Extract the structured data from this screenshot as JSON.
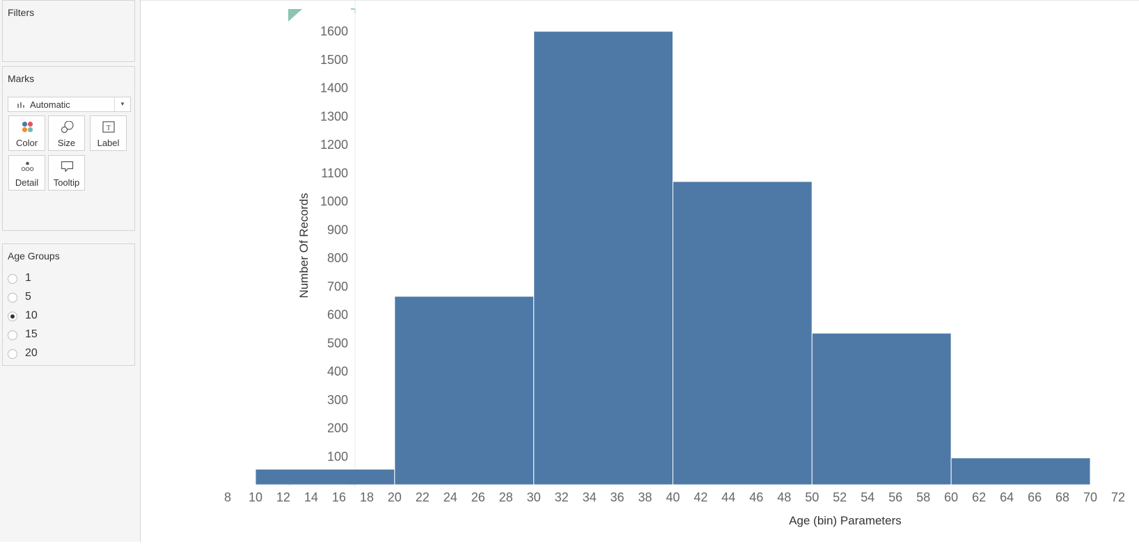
{
  "filters": {
    "title": "Filters"
  },
  "marks": {
    "title": "Marks",
    "type_selected": "Automatic",
    "buttons": [
      {
        "label": "Color",
        "icon": "color-icon"
      },
      {
        "label": "Size",
        "icon": "size-icon"
      },
      {
        "label": "Label",
        "icon": "label-icon"
      },
      {
        "label": "Detail",
        "icon": "detail-icon"
      },
      {
        "label": "Tooltip",
        "icon": "tooltip-icon"
      }
    ]
  },
  "age_groups": {
    "title": "Age Groups",
    "options": [
      "1",
      "5",
      "10",
      "15",
      "20"
    ],
    "selected": "10"
  },
  "colors": {
    "bar": "#4e79a7"
  },
  "chart_data": {
    "type": "bar",
    "title": "",
    "xlabel": "Age (bin) Parameters",
    "ylabel": "Number Of Records",
    "bins": [
      {
        "start": 10,
        "end": 20,
        "value": 55
      },
      {
        "start": 20,
        "end": 30,
        "value": 665
      },
      {
        "start": 30,
        "end": 40,
        "value": 1600
      },
      {
        "start": 40,
        "end": 50,
        "value": 1070
      },
      {
        "start": 50,
        "end": 60,
        "value": 535
      },
      {
        "start": 60,
        "end": 70,
        "value": 95
      }
    ],
    "xlim": [
      8,
      72
    ],
    "ylim": [
      0,
      1600
    ],
    "x_ticks": [
      8,
      10,
      12,
      14,
      16,
      18,
      20,
      22,
      24,
      26,
      28,
      30,
      32,
      34,
      36,
      38,
      40,
      42,
      44,
      46,
      48,
      50,
      52,
      54,
      56,
      58,
      60,
      62,
      64,
      66,
      68,
      70,
      72
    ],
    "y_ticks": [
      100,
      200,
      300,
      400,
      500,
      600,
      700,
      800,
      900,
      1000,
      1100,
      1200,
      1300,
      1400,
      1500,
      1600
    ],
    "grid": false
  }
}
